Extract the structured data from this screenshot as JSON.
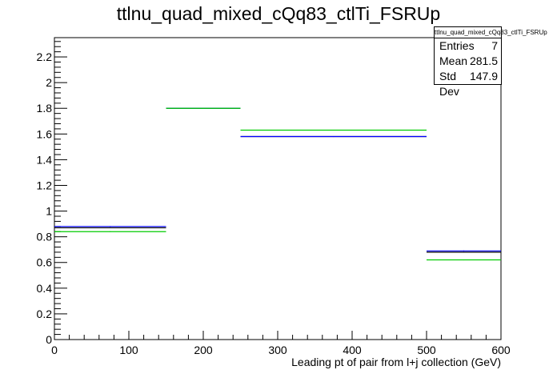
{
  "chart_data": {
    "type": "step",
    "title": "ttlnu_quad_mixed_cQq83_ctlTi_FSRUp",
    "xlabel": "Leading pt of pair from l+j collection (GeV)",
    "ylabel": "",
    "xlim": [
      0,
      600
    ],
    "ylim": [
      0,
      2.35
    ],
    "x_ticks": [
      0,
      100,
      200,
      300,
      400,
      500,
      600
    ],
    "y_ticks": [
      0,
      0.2,
      0.4,
      0.6,
      0.8,
      1,
      1.2,
      1.4,
      1.6,
      1.8,
      2,
      2.2
    ],
    "bin_edges": [
      0,
      150,
      250,
      500,
      600
    ],
    "series": [
      {
        "color": "#000000",
        "values": [
          0.87,
          1.8,
          1.58,
          0.68
        ]
      },
      {
        "color": "#0000ff",
        "values": [
          0.88,
          1.8,
          1.58,
          0.69
        ]
      },
      {
        "color": "#00cc00",
        "values": [
          0.84,
          1.8,
          1.63,
          0.62
        ]
      }
    ],
    "grid": false,
    "stats": {
      "header": "ttlnu_quad_mixed_cQq83_ctlTi_FSRUp",
      "rows": [
        {
          "label": "Entries",
          "value": "7"
        },
        {
          "label": "Mean",
          "value": "281.5"
        },
        {
          "label": "Std Dev",
          "value": "147.9"
        }
      ]
    }
  }
}
